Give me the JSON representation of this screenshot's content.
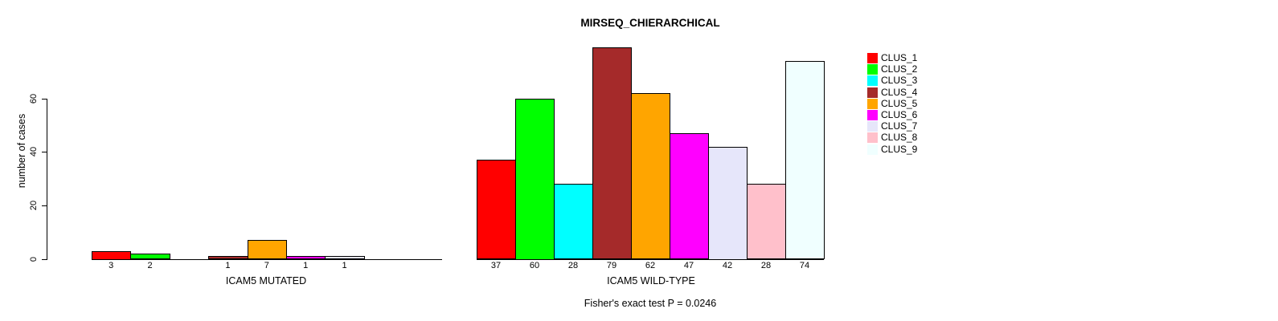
{
  "chart_data": {
    "type": "bar",
    "title": "MIRSEQ_CHIERARCHICAL",
    "ylabel": "number of cases",
    "ylim": [
      0,
      80
    ],
    "yticks": [
      0,
      20,
      40,
      60
    ],
    "grid": false,
    "categories": [
      "CLUS_1",
      "CLUS_2",
      "CLUS_3",
      "CLUS_4",
      "CLUS_5",
      "CLUS_6",
      "CLUS_7",
      "CLUS_8",
      "CLUS_9"
    ],
    "legend": {
      "position": "right",
      "entries": [
        {
          "label": "CLUS_1",
          "color": "#FF0000"
        },
        {
          "label": "CLUS_2",
          "color": "#00FF00"
        },
        {
          "label": "CLUS_3",
          "color": "#00FFFF"
        },
        {
          "label": "CLUS_4",
          "color": "#A52A2A"
        },
        {
          "label": "CLUS_5",
          "color": "#FFA500"
        },
        {
          "label": "CLUS_6",
          "color": "#FF00FF"
        },
        {
          "label": "CLUS_7",
          "color": "#E6E6FA"
        },
        {
          "label": "CLUS_8",
          "color": "#FFC0CB"
        },
        {
          "label": "CLUS_9",
          "color": "#F0FFFF"
        }
      ]
    },
    "panels": [
      {
        "id": "mutated",
        "xlabel": "ICAM5 MUTATED",
        "values": [
          3,
          2,
          0,
          1,
          7,
          1,
          1,
          0,
          0
        ]
      },
      {
        "id": "wildtype",
        "xlabel": "ICAM5 WILD-TYPE",
        "values": [
          37,
          60,
          28,
          79,
          62,
          47,
          42,
          28,
          74
        ]
      }
    ],
    "footnote": "Fisher's exact test P = 0.0246"
  }
}
